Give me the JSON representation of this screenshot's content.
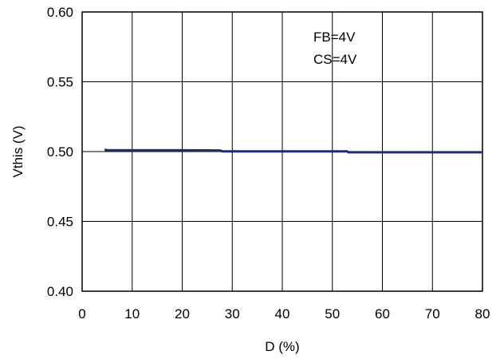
{
  "chart_data": {
    "type": "line",
    "xlabel": "D (%)",
    "ylabel": "Vthis (V)",
    "xlim": [
      0,
      80
    ],
    "ylim": [
      0.4,
      0.6
    ],
    "xticks": [
      0,
      10,
      20,
      30,
      40,
      50,
      60,
      70,
      80
    ],
    "xtick_labels": [
      "0",
      "10",
      "20",
      "30",
      "40",
      "50",
      "60",
      "70",
      "80"
    ],
    "yticks": [
      0.4,
      0.45,
      0.5,
      0.55,
      0.6
    ],
    "ytick_labels": [
      "0.40",
      "0.45",
      "0.50",
      "0.55",
      "0.60"
    ],
    "grid": true,
    "annotations": [
      "FB=4V",
      "CS=4V"
    ],
    "series": [
      {
        "color": "#1f2a7a",
        "x": [
          4.5,
          5.0,
          10,
          20,
          27.5,
          28,
          30,
          40,
          50,
          53,
          53.2,
          60,
          70,
          80
        ],
        "y": [
          0.5015,
          0.5009,
          0.5009,
          0.5009,
          0.5008,
          0.5002,
          0.5002,
          0.5002,
          0.5002,
          0.5001,
          0.4995,
          0.4995,
          0.4995,
          0.4995
        ]
      }
    ]
  }
}
